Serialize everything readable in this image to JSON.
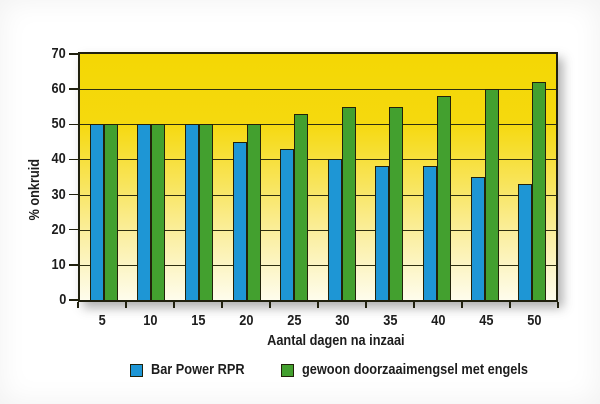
{
  "chart_data": {
    "type": "bar",
    "title": "",
    "categories": [
      "5",
      "10",
      "15",
      "20",
      "25",
      "30",
      "35",
      "40",
      "45",
      "50"
    ],
    "series": [
      {
        "name": "Bar Power RPR",
        "color": "#1E96D5",
        "values": [
          50,
          50,
          50,
          45,
          43,
          40,
          38,
          38,
          35,
          33
        ]
      },
      {
        "name": "gewoon doorzaaimengsel met engels",
        "color": "#43A02F",
        "values": [
          50,
          50,
          50,
          50,
          53,
          55,
          55,
          58,
          60,
          62
        ]
      }
    ],
    "xlabel": "Aantal dagen na inzaai",
    "ylabel": "% onkruid",
    "ylim": [
      0,
      70
    ],
    "ytick_step": 10,
    "grid": true,
    "legend_position": "bottom"
  },
  "colors": {
    "plot_bg_top": "#F4D704",
    "plot_bg_bottom": "#FEFCEC",
    "bar_outline": "#22220a",
    "grid_line": "#2e2e10",
    "axis": "#20200e",
    "text": "#1d1d1d"
  }
}
